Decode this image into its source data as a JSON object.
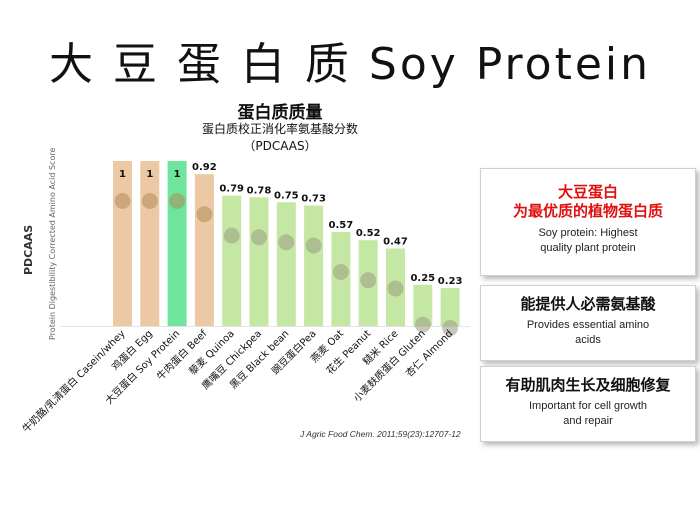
{
  "title": "大 豆 蛋 白 质 Soy Protein",
  "chart_data": {
    "type": "bar",
    "title": "蛋白质质量",
    "subtitle": "蛋白质校正消化率氨基酸分数",
    "subtitle2": "（PDCAAS）",
    "ylabel": "PDCAAS",
    "ylabel_full": "Protein Digestibility Corrected Amino Acid Score",
    "ylim": [
      0,
      1
    ],
    "categories": [
      "牛奶酪/乳清蛋白 Casein/whey",
      "鸡蛋白 Egg",
      "大豆蛋白 Soy Protein",
      "牛肉蛋白 Beef",
      "藜麦 Quinoa",
      "鹰嘴豆 Chickpea",
      "黑豆 Black bean",
      "豌豆蛋白Pea",
      "燕麦 Oat",
      "花生 Peanut",
      "糙米 Rice",
      "小麦麸质蛋白 Gluten",
      "杏仁 Almond"
    ],
    "values": [
      1,
      1,
      1,
      0.92,
      0.79,
      0.78,
      0.75,
      0.73,
      0.57,
      0.52,
      0.47,
      0.25,
      0.23
    ],
    "value_labels": [
      "1",
      "1",
      "1",
      "0.92",
      "0.79",
      "0.78",
      "0.75",
      "0.73",
      "0.57",
      "0.52",
      "0.47",
      "0.25",
      "0.23"
    ],
    "bar_colors": [
      "#ecc9a4",
      "#ecc9a4",
      "#6ee49c",
      "#ecc9a4",
      "#c4e8a4",
      "#c4e8a4",
      "#c4e8a4",
      "#c4e8a4",
      "#c4e8a4",
      "#c4e8a4",
      "#c4e8a4",
      "#c4e8a4",
      "#c4e8a4"
    ]
  },
  "citation": "J Agric Food Chem. 2011;59(23):12707-12",
  "panels": [
    {
      "title": "大豆蛋白",
      "title2": "为最优质的植物蛋白质",
      "text": "Soy protein: Highest",
      "text2": "quality plant protein"
    },
    {
      "title": "能提供人必需氨基酸",
      "text": "Provides essential amino",
      "text2": "acids"
    },
    {
      "title": "有助肌肉生长及细胞修复",
      "text": "Important for cell growth",
      "text2": "and repair"
    }
  ],
  "colors": {
    "accent_red": "#e01010",
    "soy_green": "#6ee49c",
    "animal_tan": "#ecc9a4",
    "plant_green": "#c4e8a4"
  }
}
